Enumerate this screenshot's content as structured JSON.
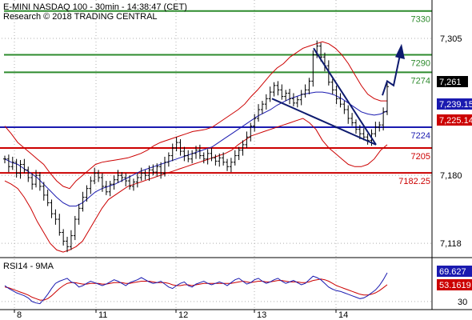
{
  "header": {
    "line1": "E-MINI NASDAQ 100 - 30min - 14:38:47 (CET)",
    "line2": "Research © 2018 TRADING CENTRAL"
  },
  "colors": {
    "green": "#2e8b2e",
    "blue": "#1a1ab0",
    "red": "#cc0000",
    "navy": "#0d1a6e",
    "grid": "#b0b0b0",
    "price": "#000000"
  },
  "chart_data": [
    {
      "type": "line",
      "name": "price",
      "x_ticks": [
        "8",
        "11",
        "12",
        "13",
        "14"
      ],
      "y_ticks": [
        "7,305",
        "7,180",
        "7,118"
      ],
      "ylim": [
        7105,
        7340
      ],
      "levels": [
        {
          "label": "7330",
          "value": 7330,
          "color": "green"
        },
        {
          "label": "7290",
          "value": 7290,
          "color": "green"
        },
        {
          "label": "7274",
          "value": 7274,
          "color": "green"
        },
        {
          "label": "7224",
          "value": 7224,
          "color": "blue"
        },
        {
          "label": "7205",
          "value": 7205,
          "color": "red"
        },
        {
          "label": "7182.25",
          "value": 7182.25,
          "color": "red"
        }
      ],
      "tags": [
        {
          "label": "7,261",
          "value": 7261,
          "color": "price"
        },
        {
          "label": "7,239.15",
          "value": 7239.15,
          "color": "blue"
        },
        {
          "label": "7,225.14",
          "value": 7225.14,
          "color": "red"
        }
      ],
      "close": [
        7195,
        7188,
        7192,
        7182,
        7190,
        7185,
        7178,
        7172,
        7180,
        7170,
        7162,
        7155,
        7145,
        7140,
        7128,
        7120,
        7115,
        7125,
        7140,
        7150,
        7160,
        7168,
        7175,
        7182,
        7178,
        7170,
        7165,
        7172,
        7176,
        7180,
        7178,
        7175,
        7170,
        7174,
        7178,
        7182,
        7180,
        7185,
        7183,
        7188,
        7182,
        7192,
        7198,
        7205,
        7210,
        7202,
        7198,
        7195,
        7200,
        7203,
        7198,
        7195,
        7200,
        7196,
        7193,
        7196,
        7192,
        7188,
        7192,
        7198,
        7203,
        7208,
        7215,
        7225,
        7232,
        7240,
        7245,
        7250,
        7256,
        7262,
        7258,
        7252,
        7255,
        7250,
        7246,
        7249,
        7254,
        7258,
        7266,
        7290,
        7298,
        7288,
        7280,
        7265,
        7258,
        7250,
        7245,
        7240,
        7232,
        7228,
        7222,
        7218,
        7215,
        7212,
        7218,
        7224,
        7226,
        7238,
        7261
      ],
      "bb_upper": [
        7225,
        7218,
        7210,
        7205,
        7200,
        7195,
        7190,
        7182,
        7175,
        7170,
        7168,
        7175,
        7180,
        7185,
        7190,
        7192,
        7193,
        7194,
        7195,
        7196,
        7198,
        7200,
        7203,
        7207,
        7210,
        7212,
        7214,
        7216,
        7218,
        7220,
        7221,
        7222,
        7224,
        7228,
        7232,
        7236,
        7240,
        7245,
        7252,
        7258,
        7265,
        7272,
        7278,
        7282,
        7288,
        7292,
        7296,
        7298,
        7300,
        7302,
        7300,
        7296,
        7290,
        7282,
        7272,
        7262,
        7254,
        7250,
        7248,
        7248
      ],
      "bb_lower": [
        7175,
        7172,
        7168,
        7160,
        7150,
        7138,
        7128,
        7118,
        7112,
        7110,
        7112,
        7115,
        7120,
        7130,
        7140,
        7150,
        7158,
        7162,
        7166,
        7170,
        7172,
        7174,
        7176,
        7178,
        7180,
        7182,
        7184,
        7186,
        7188,
        7190,
        7192,
        7194,
        7196,
        7198,
        7200,
        7203,
        7208,
        7212,
        7216,
        7218,
        7220,
        7222,
        7224,
        7226,
        7228,
        7230,
        7232,
        7228,
        7222,
        7212,
        7205,
        7200,
        7195,
        7190,
        7188,
        7188,
        7190,
        7195,
        7203,
        7208
      ],
      "ma": [
        7195,
        7192,
        7190,
        7186,
        7182,
        7178,
        7172,
        7166,
        7160,
        7155,
        7152,
        7152,
        7155,
        7160,
        7165,
        7168,
        7170,
        7172,
        7175,
        7178,
        7181,
        7184,
        7186,
        7188,
        7190,
        7192,
        7194,
        7196,
        7198,
        7200,
        7202,
        7204,
        7206,
        7210,
        7214,
        7218,
        7222,
        7226,
        7230,
        7234,
        7237,
        7240,
        7244,
        7247,
        7250,
        7252,
        7254,
        7255,
        7256,
        7256,
        7255,
        7253,
        7250,
        7246,
        7242,
        7238,
        7236,
        7235,
        7236,
        7239
      ]
    },
    {
      "type": "line",
      "name": "RSI14 - 9MA",
      "title": "RSI14 - 9MA",
      "y_ticks": [
        "30"
      ],
      "ylim": [
        20,
        85
      ],
      "tags": [
        {
          "label": "69.627",
          "value": 69.627,
          "color": "blue"
        },
        {
          "label": "53.1619",
          "value": 53.1619,
          "color": "red"
        }
      ],
      "rsi": [
        52,
        48,
        45,
        42,
        40,
        38,
        35,
        30,
        28,
        27,
        33,
        40,
        48,
        55,
        58,
        60,
        62,
        57,
        55,
        50,
        52,
        55,
        58,
        56,
        54,
        52,
        54,
        57,
        60,
        58,
        55,
        52,
        56,
        58,
        60,
        63,
        60,
        57,
        55,
        56,
        58,
        54,
        50,
        48,
        52,
        55,
        57,
        52,
        50,
        54,
        56,
        58,
        55,
        53,
        55,
        57,
        55,
        52,
        56,
        60,
        62,
        58,
        54,
        56,
        60,
        62,
        58,
        55,
        57,
        60,
        62,
        58,
        55,
        57,
        59,
        56,
        53,
        55,
        60,
        65,
        63,
        60,
        55,
        50,
        47,
        45,
        44,
        42,
        40,
        38,
        36,
        34,
        35,
        38,
        42,
        46,
        52,
        60,
        69.6
      ],
      "rsi_ma": [
        50,
        49,
        47,
        45,
        43,
        41,
        39,
        36,
        34,
        32,
        32,
        34,
        38,
        43,
        48,
        52,
        55,
        56,
        56,
        55,
        54,
        54,
        55,
        55,
        55,
        54,
        54,
        55,
        56,
        56,
        56,
        55,
        55,
        56,
        57,
        58,
        58,
        58,
        57,
        56,
        56,
        56,
        55,
        53,
        52,
        52,
        53,
        53,
        52,
        53,
        54,
        55,
        55,
        55,
        55,
        55,
        55,
        55,
        55,
        56,
        57,
        58,
        57,
        56,
        57,
        58,
        58,
        57,
        57,
        58,
        59,
        59,
        58,
        57,
        57,
        57,
        56,
        56,
        57,
        59,
        60,
        61,
        60,
        58,
        55,
        52,
        50,
        48,
        46,
        44,
        42,
        40,
        39,
        39,
        40,
        42,
        45,
        49,
        53.2
      ]
    }
  ]
}
